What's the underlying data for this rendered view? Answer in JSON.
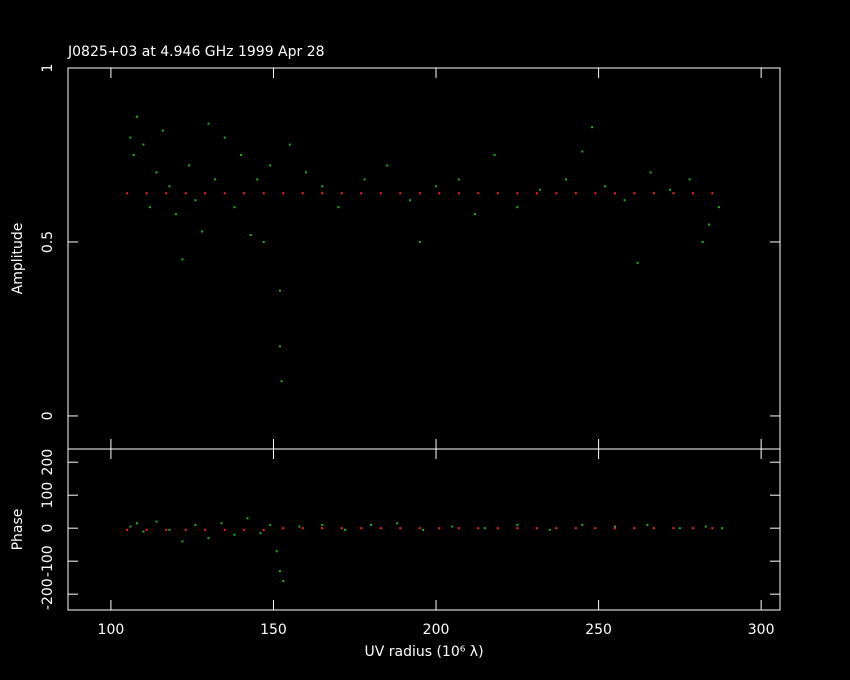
{
  "chart_data": [
    {
      "type": "scatter",
      "title": "J0825+03 at 4.946 GHz 1999 Apr 28",
      "y_label": "Amplitude",
      "xlim": [
        86.8,
        305.8
      ],
      "xticks": [
        100,
        150,
        200,
        250,
        300
      ],
      "ylim": [
        -0.095,
        1.0
      ],
      "yticks": [
        0,
        0.5,
        1
      ],
      "series": [
        {
          "color": "#1fb31f",
          "x": [
            106,
            107,
            108,
            110,
            112,
            114,
            116,
            118,
            120,
            122,
            124,
            126,
            128,
            130,
            132,
            135,
            138,
            140,
            143,
            145,
            147,
            149,
            152,
            152.5,
            152,
            155,
            160,
            165,
            170,
            178,
            185,
            192,
            195,
            200,
            207,
            212,
            218,
            225,
            232,
            240,
            245,
            248,
            252,
            258,
            262,
            266,
            272,
            278,
            282,
            284,
            287
          ],
          "values": [
            0.8,
            0.75,
            0.86,
            0.78,
            0.6,
            0.7,
            0.82,
            0.66,
            0.58,
            0.45,
            0.72,
            0.62,
            0.53,
            0.84,
            0.68,
            0.8,
            0.6,
            0.75,
            0.52,
            0.68,
            0.5,
            0.72,
            0.2,
            0.1,
            0.36,
            0.78,
            0.7,
            0.66,
            0.6,
            0.68,
            0.72,
            0.62,
            0.5,
            0.66,
            0.68,
            0.58,
            0.75,
            0.6,
            0.65,
            0.68,
            0.76,
            0.83,
            0.66,
            0.62,
            0.44,
            0.7,
            0.65,
            0.68,
            0.5,
            0.55,
            0.6
          ]
        },
        {
          "color": "#ff2020",
          "x": [
            105,
            111,
            117,
            123,
            129,
            135,
            141,
            147,
            153,
            159,
            165,
            171,
            177,
            183,
            189,
            195,
            201,
            207,
            213,
            219,
            225,
            231,
            237,
            243,
            249,
            255,
            261,
            267,
            273,
            279,
            285
          ],
          "values": [
            0.64,
            0.64,
            0.64,
            0.64,
            0.64,
            0.64,
            0.64,
            0.64,
            0.64,
            0.64,
            0.64,
            0.64,
            0.64,
            0.64,
            0.64,
            0.64,
            0.64,
            0.64,
            0.64,
            0.64,
            0.64,
            0.64,
            0.64,
            0.64,
            0.64,
            0.64,
            0.64,
            0.64,
            0.64,
            0.64,
            0.64
          ]
        }
      ]
    },
    {
      "type": "scatter",
      "y_label": "Phase",
      "x_label": "UV radius  (10⁶ λ)",
      "xlim": [
        86.8,
        305.8
      ],
      "xticks": [
        100,
        150,
        200,
        250,
        300
      ],
      "ylim": [
        -248,
        240
      ],
      "yticks": [
        -200,
        -100,
        0,
        100,
        200
      ],
      "series": [
        {
          "color": "#1fb31f",
          "x": [
            106,
            108,
            110,
            114,
            118,
            122,
            126,
            130,
            134,
            138,
            142,
            146,
            149,
            151,
            152,
            153,
            158,
            165,
            172,
            180,
            188,
            196,
            205,
            215,
            225,
            235,
            245,
            255,
            265,
            275,
            283,
            288
          ],
          "values": [
            5,
            15,
            -10,
            20,
            -5,
            -40,
            10,
            -30,
            15,
            -20,
            30,
            -15,
            10,
            -70,
            -130,
            -160,
            5,
            10,
            -5,
            10,
            15,
            -5,
            5,
            0,
            10,
            -5,
            10,
            5,
            10,
            0,
            5,
            0
          ]
        },
        {
          "color": "#ff2020",
          "x": [
            105,
            111,
            117,
            123,
            129,
            135,
            141,
            147,
            153,
            159,
            165,
            171,
            177,
            183,
            189,
            195,
            201,
            207,
            213,
            219,
            225,
            231,
            237,
            243,
            249,
            255,
            261,
            267,
            273,
            279,
            285
          ],
          "values": [
            -5,
            -5,
            -5,
            -5,
            -5,
            -5,
            -5,
            -5,
            0,
            0,
            0,
            0,
            0,
            0,
            0,
            0,
            0,
            0,
            0,
            0,
            0,
            0,
            0,
            0,
            0,
            0,
            0,
            0,
            0,
            0,
            0
          ]
        }
      ]
    }
  ]
}
